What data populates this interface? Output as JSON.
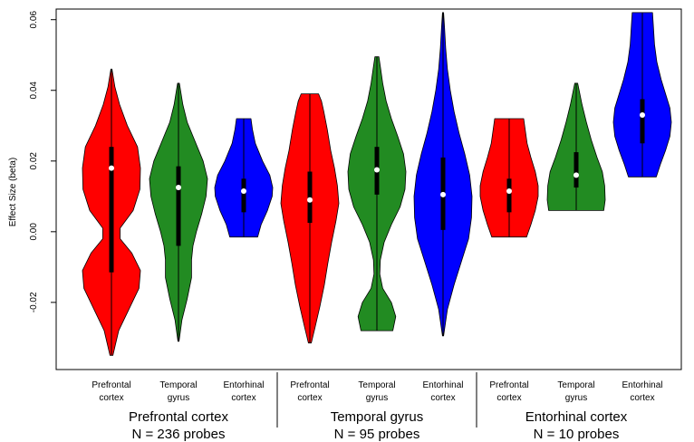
{
  "chart_data": {
    "type": "violin",
    "ylabel": "Effect Size (beta)",
    "ylim": [
      -0.039,
      0.063
    ],
    "yticks": [
      "-0.02",
      "0.00",
      "0.02",
      "0.04",
      "0.06"
    ],
    "ytick_values": [
      -0.02,
      0.0,
      0.02,
      0.04,
      0.06
    ],
    "grid": false,
    "groups": [
      {
        "title": "Prefrontal cortex",
        "subtitle": "N = 236 probes",
        "violins": [
          {
            "label_line1": "Prefrontal",
            "label_line2": "cortex",
            "color": "#ff0000",
            "min": -0.035,
            "max": 0.046,
            "q1": -0.0115,
            "median": 0.018,
            "q3": 0.024,
            "profile": [
              [
                -0.035,
                0.05
              ],
              [
                -0.028,
                0.25
              ],
              [
                -0.022,
                0.6
              ],
              [
                -0.016,
                0.95
              ],
              [
                -0.011,
                1.0
              ],
              [
                -0.006,
                0.7
              ],
              [
                -0.002,
                0.3
              ],
              [
                0.001,
                0.3
              ],
              [
                0.006,
                0.75
              ],
              [
                0.012,
                0.98
              ],
              [
                0.018,
                1.0
              ],
              [
                0.024,
                0.9
              ],
              [
                0.03,
                0.55
              ],
              [
                0.036,
                0.28
              ],
              [
                0.041,
                0.12
              ],
              [
                0.046,
                0.02
              ]
            ]
          },
          {
            "label_line1": "Temporal",
            "label_line2": "gyrus",
            "color": "#228b22",
            "min": -0.031,
            "max": 0.042,
            "q1": -0.004,
            "median": 0.0125,
            "q3": 0.0185,
            "profile": [
              [
                -0.031,
                0.02
              ],
              [
                -0.025,
                0.12
              ],
              [
                -0.019,
                0.3
              ],
              [
                -0.013,
                0.45
              ],
              [
                -0.008,
                0.45
              ],
              [
                -0.004,
                0.5
              ],
              [
                0.0,
                0.62
              ],
              [
                0.005,
                0.8
              ],
              [
                0.01,
                0.95
              ],
              [
                0.015,
                1.0
              ],
              [
                0.02,
                0.85
              ],
              [
                0.026,
                0.55
              ],
              [
                0.031,
                0.3
              ],
              [
                0.036,
                0.15
              ],
              [
                0.042,
                0.03
              ]
            ]
          },
          {
            "label_line1": "Entorhinal",
            "label_line2": "cortex",
            "color": "#0000ff",
            "min": -0.0015,
            "max": 0.032,
            "q1": 0.0055,
            "median": 0.0115,
            "q3": 0.015,
            "profile": [
              [
                -0.0015,
                0.48
              ],
              [
                0.002,
                0.6
              ],
              [
                0.006,
                0.82
              ],
              [
                0.01,
                0.98
              ],
              [
                0.0125,
                1.0
              ],
              [
                0.016,
                0.9
              ],
              [
                0.02,
                0.65
              ],
              [
                0.025,
                0.4
              ],
              [
                0.029,
                0.3
              ],
              [
                0.032,
                0.25
              ]
            ]
          }
        ]
      },
      {
        "title": "Temporal gyrus",
        "subtitle": "N = 95 probes",
        "violins": [
          {
            "label_line1": "Prefrontal",
            "label_line2": "cortex",
            "color": "#ff0000",
            "min": -0.0315,
            "max": 0.039,
            "q1": 0.0025,
            "median": 0.009,
            "q3": 0.017,
            "profile": [
              [
                -0.0315,
                0.05
              ],
              [
                -0.027,
                0.18
              ],
              [
                -0.021,
                0.35
              ],
              [
                -0.015,
                0.5
              ],
              [
                -0.009,
                0.62
              ],
              [
                -0.003,
                0.75
              ],
              [
                0.003,
                0.9
              ],
              [
                0.008,
                1.0
              ],
              [
                0.013,
                0.95
              ],
              [
                0.018,
                0.85
              ],
              [
                0.023,
                0.72
              ],
              [
                0.029,
                0.6
              ],
              [
                0.034,
                0.48
              ],
              [
                0.037,
                0.4
              ],
              [
                0.039,
                0.3
              ]
            ]
          },
          {
            "label_line1": "Temporal",
            "label_line2": "gyrus",
            "color": "#228b22",
            "min": -0.028,
            "max": 0.0495,
            "q1": 0.0105,
            "median": 0.0175,
            "q3": 0.024,
            "profile": [
              [
                -0.028,
                0.55
              ],
              [
                -0.024,
                0.65
              ],
              [
                -0.02,
                0.5
              ],
              [
                -0.016,
                0.2
              ],
              [
                -0.012,
                0.1
              ],
              [
                -0.008,
                0.12
              ],
              [
                -0.003,
                0.25
              ],
              [
                0.002,
                0.5
              ],
              [
                0.007,
                0.8
              ],
              [
                0.012,
                0.97
              ],
              [
                0.017,
                1.0
              ],
              [
                0.022,
                0.92
              ],
              [
                0.027,
                0.72
              ],
              [
                0.032,
                0.5
              ],
              [
                0.037,
                0.32
              ],
              [
                0.042,
                0.2
              ],
              [
                0.046,
                0.13
              ],
              [
                0.0495,
                0.07
              ]
            ]
          },
          {
            "label_line1": "Entorhinal",
            "label_line2": "cortex",
            "color": "#0000ff",
            "min": -0.0295,
            "max": 0.062,
            "q1": 0.0005,
            "median": 0.0105,
            "q3": 0.021,
            "profile": [
              [
                -0.0295,
                0.02
              ],
              [
                -0.022,
                0.15
              ],
              [
                -0.015,
                0.38
              ],
              [
                -0.008,
                0.65
              ],
              [
                -0.002,
                0.88
              ],
              [
                0.004,
                0.98
              ],
              [
                0.01,
                1.0
              ],
              [
                0.016,
                0.92
              ],
              [
                0.022,
                0.75
              ],
              [
                0.028,
                0.55
              ],
              [
                0.034,
                0.38
              ],
              [
                0.04,
                0.25
              ],
              [
                0.046,
                0.15
              ],
              [
                0.052,
                0.09
              ],
              [
                0.058,
                0.05
              ],
              [
                0.062,
                0.02
              ]
            ]
          }
        ]
      },
      {
        "title": "Entorhinal cortex",
        "subtitle": "N = 10 probes",
        "violins": [
          {
            "label_line1": "Prefrontal",
            "label_line2": "cortex",
            "color": "#ff0000",
            "min": -0.0015,
            "max": 0.032,
            "q1": 0.0055,
            "median": 0.0115,
            "q3": 0.015,
            "profile": [
              [
                -0.0015,
                0.6
              ],
              [
                0.002,
                0.75
              ],
              [
                0.006,
                0.9
              ],
              [
                0.01,
                1.0
              ],
              [
                0.013,
                1.0
              ],
              [
                0.017,
                0.9
              ],
              [
                0.021,
                0.75
              ],
              [
                0.025,
                0.62
              ],
              [
                0.029,
                0.55
              ],
              [
                0.032,
                0.5
              ]
            ]
          },
          {
            "label_line1": "Temporal",
            "label_line2": "gyrus",
            "color": "#228b22",
            "min": 0.006,
            "max": 0.042,
            "q1": 0.0125,
            "median": 0.016,
            "q3": 0.0225,
            "profile": [
              [
                0.006,
                0.95
              ],
              [
                0.009,
                1.0
              ],
              [
                0.013,
                0.98
              ],
              [
                0.017,
                0.9
              ],
              [
                0.021,
                0.72
              ],
              [
                0.026,
                0.52
              ],
              [
                0.031,
                0.35
              ],
              [
                0.036,
                0.2
              ],
              [
                0.04,
                0.1
              ],
              [
                0.042,
                0.05
              ]
            ]
          },
          {
            "label_line1": "Entorhinal",
            "label_line2": "cortex",
            "color": "#0000ff",
            "min": 0.0155,
            "max": 0.062,
            "q1": 0.025,
            "median": 0.033,
            "q3": 0.0375,
            "profile": [
              [
                0.0155,
                0.48
              ],
              [
                0.019,
                0.62
              ],
              [
                0.023,
                0.8
              ],
              [
                0.027,
                0.95
              ],
              [
                0.031,
                1.0
              ],
              [
                0.035,
                0.95
              ],
              [
                0.039,
                0.8
              ],
              [
                0.043,
                0.65
              ],
              [
                0.048,
                0.5
              ],
              [
                0.053,
                0.42
              ],
              [
                0.058,
                0.38
              ],
              [
                0.062,
                0.35
              ]
            ]
          }
        ]
      }
    ]
  }
}
